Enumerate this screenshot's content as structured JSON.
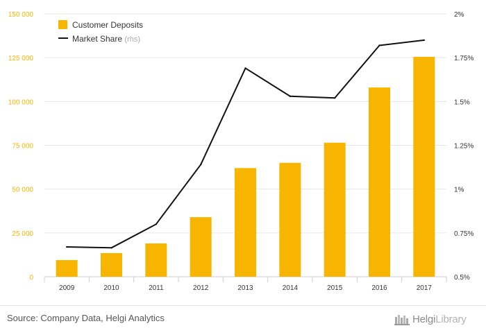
{
  "chart_data": {
    "type": "bar",
    "categories": [
      "2009",
      "2010",
      "2011",
      "2012",
      "2013",
      "2014",
      "2015",
      "2016",
      "2017"
    ],
    "series": [
      {
        "name": "Customer Deposits",
        "type": "bar",
        "axis": "left",
        "color": "#f7b500",
        "values": [
          9500,
          13500,
          19000,
          34000,
          62000,
          65000,
          76500,
          108000,
          125500
        ]
      },
      {
        "name": "Market Share",
        "suffix": "(rhs)",
        "type": "line",
        "axis": "right",
        "color": "#111111",
        "values": [
          0.67,
          0.665,
          0.8,
          1.14,
          1.69,
          1.53,
          1.52,
          1.82,
          1.85
        ]
      }
    ],
    "y_left": {
      "ylim": [
        0,
        150000
      ],
      "ticks": [
        0,
        25000,
        50000,
        75000,
        100000,
        125000,
        150000
      ],
      "tick_labels": [
        "0",
        "25 000",
        "50 000",
        "75 000",
        "100 000",
        "125 000",
        "150 000"
      ],
      "tick_color": "#f7b500"
    },
    "y_right": {
      "ylim": [
        0.5,
        2.0
      ],
      "ticks": [
        0.5,
        0.75,
        1.0,
        1.25,
        1.5,
        1.75,
        2.0
      ],
      "tick_labels": [
        "0.5%",
        "0.75%",
        "1%",
        "1.25%",
        "1.5%",
        "1.75%",
        "2%"
      ]
    },
    "grid": true,
    "legend_placement": "top-left"
  },
  "source": "Source: Company Data, Helgi Analytics",
  "brand": {
    "part1": "Helgi",
    "part2": "Library"
  }
}
